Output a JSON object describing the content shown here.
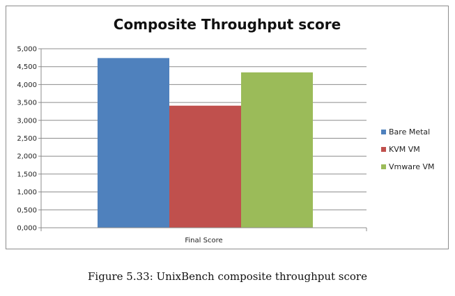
{
  "chart_data": {
    "type": "bar",
    "title": "Composite Throughput score",
    "categories": [
      "Final Score"
    ],
    "series": [
      {
        "name": "Bare Metal",
        "values": [
          4.74
        ],
        "color": "#4f81bd"
      },
      {
        "name": "KVM VM",
        "values": [
          3.41
        ],
        "color": "#c0504d"
      },
      {
        "name": "Vmware VM",
        "values": [
          4.34
        ],
        "color": "#9bbb59"
      }
    ],
    "yticks": [
      "0,000",
      "0,500",
      "1,000",
      "1,500",
      "2,000",
      "2,500",
      "3,000",
      "3,500",
      "4,000",
      "4,500",
      "5,000"
    ],
    "ylim": [
      0,
      5
    ],
    "grid": true,
    "legend_position": "right",
    "xlabel": "",
    "ylabel": ""
  },
  "caption": "Figure 5.33: UnixBench composite throughput score"
}
